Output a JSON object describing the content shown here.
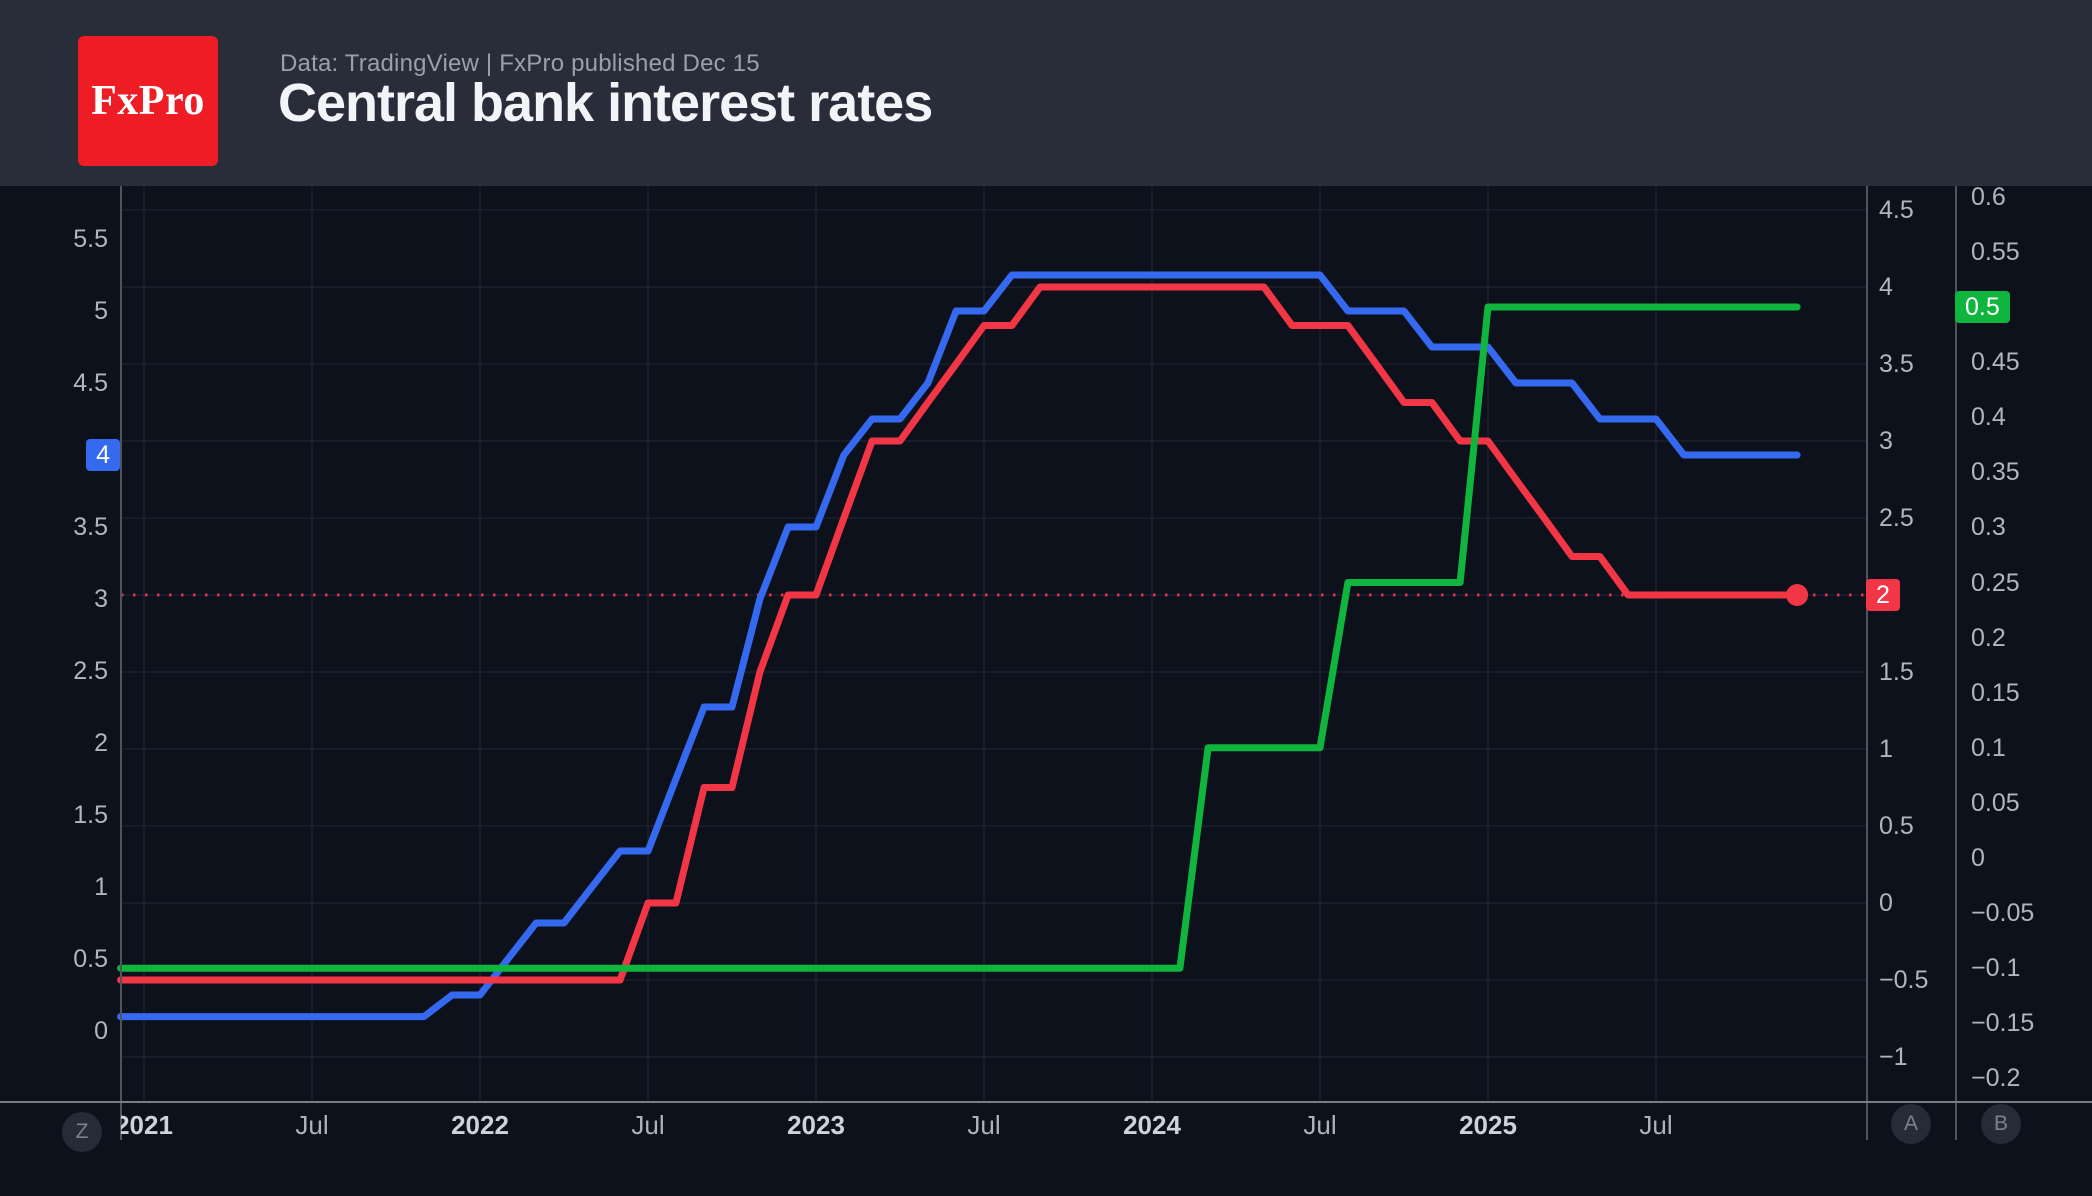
{
  "header": {
    "logo_text": "FxPro",
    "source_line": "Data: TradingView  |  FxPro published Dec 15",
    "title": "Central bank interest rates"
  },
  "chart_data": {
    "type": "line",
    "x_unit": "decimal_year",
    "x_range": [
      2020.93,
      2025.92
    ],
    "grid": true,
    "legend": "none",
    "series": [
      {
        "id": "blue-line",
        "color": "#3569f0",
        "axis": "left",
        "last_value": 4.0,
        "points": [
          [
            2020.93,
            0.1
          ],
          [
            2021.833,
            0.1
          ],
          [
            2021.917,
            0.25
          ],
          [
            2022.0,
            0.25
          ],
          [
            2022.083,
            0.5
          ],
          [
            2022.167,
            0.75
          ],
          [
            2022.25,
            0.75
          ],
          [
            2022.333,
            1.0
          ],
          [
            2022.417,
            1.25
          ],
          [
            2022.5,
            1.25
          ],
          [
            2022.583,
            1.75
          ],
          [
            2022.667,
            2.25
          ],
          [
            2022.75,
            2.25
          ],
          [
            2022.833,
            3.0
          ],
          [
            2022.917,
            3.5
          ],
          [
            2023.0,
            3.5
          ],
          [
            2023.083,
            4.0
          ],
          [
            2023.167,
            4.25
          ],
          [
            2023.25,
            4.25
          ],
          [
            2023.333,
            4.5
          ],
          [
            2023.417,
            5.0
          ],
          [
            2023.5,
            5.0
          ],
          [
            2023.583,
            5.25
          ],
          [
            2024.5,
            5.25
          ],
          [
            2024.583,
            5.0
          ],
          [
            2024.75,
            5.0
          ],
          [
            2024.833,
            4.75
          ],
          [
            2025.0,
            4.75
          ],
          [
            2025.083,
            4.5
          ],
          [
            2025.25,
            4.5
          ],
          [
            2025.333,
            4.25
          ],
          [
            2025.5,
            4.25
          ],
          [
            2025.583,
            4.0
          ],
          [
            2025.92,
            4.0
          ]
        ]
      },
      {
        "id": "red-line",
        "color": "#f23645",
        "axis": "right",
        "last_value": 2.0,
        "points": [
          [
            2020.93,
            -0.5
          ],
          [
            2022.417,
            -0.5
          ],
          [
            2022.5,
            0.0
          ],
          [
            2022.583,
            0.0
          ],
          [
            2022.667,
            0.75
          ],
          [
            2022.75,
            0.75
          ],
          [
            2022.833,
            1.5
          ],
          [
            2022.917,
            2.0
          ],
          [
            2023.0,
            2.0
          ],
          [
            2023.083,
            2.5
          ],
          [
            2023.167,
            3.0
          ],
          [
            2023.25,
            3.0
          ],
          [
            2023.333,
            3.25
          ],
          [
            2023.417,
            3.5
          ],
          [
            2023.5,
            3.75
          ],
          [
            2023.583,
            3.75
          ],
          [
            2023.667,
            4.0
          ],
          [
            2024.333,
            4.0
          ],
          [
            2024.417,
            3.75
          ],
          [
            2024.583,
            3.75
          ],
          [
            2024.667,
            3.5
          ],
          [
            2024.75,
            3.25
          ],
          [
            2024.833,
            3.25
          ],
          [
            2024.917,
            3.0
          ],
          [
            2025.0,
            3.0
          ],
          [
            2025.083,
            2.75
          ],
          [
            2025.167,
            2.5
          ],
          [
            2025.25,
            2.25
          ],
          [
            2025.333,
            2.25
          ],
          [
            2025.417,
            2.0
          ],
          [
            2025.92,
            2.0
          ]
        ]
      },
      {
        "id": "green-line",
        "color": "#0fb53c",
        "axis": "far_right",
        "last_value": 0.5,
        "points": [
          [
            2020.93,
            -0.1
          ],
          [
            2024.083,
            -0.1
          ],
          [
            2024.167,
            0.1
          ],
          [
            2024.5,
            0.1
          ],
          [
            2024.583,
            0.25
          ],
          [
            2024.917,
            0.25
          ],
          [
            2025.0,
            0.5
          ],
          [
            2025.92,
            0.5
          ]
        ]
      }
    ],
    "price_line": {
      "series": "red-line",
      "axis": "right",
      "value": 2.0,
      "style": "dotted",
      "color": "#f23645",
      "end_marker": true
    },
    "axes": {
      "left": {
        "side": "left",
        "ticks": [
          {
            "label": "5.5",
            "v": 5.5
          },
          {
            "label": "5",
            "v": 5.0
          },
          {
            "label": "4.5",
            "v": 4.5
          },
          {
            "label": "3.5",
            "v": 3.5
          },
          {
            "label": "3",
            "v": 3.0
          },
          {
            "label": "2.5",
            "v": 2.5
          },
          {
            "label": "2",
            "v": 2.0
          },
          {
            "label": "1.5",
            "v": 1.5
          },
          {
            "label": "1",
            "v": 1.0
          },
          {
            "label": "0.5",
            "v": 0.5
          },
          {
            "label": "0",
            "v": 0.0
          }
        ],
        "badge": {
          "label": "4",
          "value": 4.0,
          "color": "#3569f0"
        }
      },
      "right": {
        "side": "right",
        "grid_values": [
          4.5,
          4.0,
          3.5,
          3.0,
          2.5,
          2.0,
          1.5,
          1.0,
          0.5,
          0.0,
          -0.5,
          -1.0
        ],
        "ticks": [
          {
            "label": "4.5",
            "v": 4.5
          },
          {
            "label": "4",
            "v": 4.0
          },
          {
            "label": "3.5",
            "v": 3.5
          },
          {
            "label": "3",
            "v": 3.0
          },
          {
            "label": "2.5",
            "v": 2.5
          },
          {
            "label": "1.5",
            "v": 1.5
          },
          {
            "label": "1",
            "v": 1.0
          },
          {
            "label": "0.5",
            "v": 0.5
          },
          {
            "label": "0",
            "v": 0.0
          },
          {
            "label": "−0.5",
            "v": -0.5
          },
          {
            "label": "−1",
            "v": -1.0
          }
        ],
        "badge": {
          "label": "2",
          "value": 2.0,
          "color": "#f23645"
        }
      },
      "far_right": {
        "side": "far_right",
        "ticks": [
          {
            "label": "0.6",
            "v": 0.6
          },
          {
            "label": "0.55",
            "v": 0.55
          },
          {
            "label": "0.45",
            "v": 0.45
          },
          {
            "label": "0.4",
            "v": 0.4
          },
          {
            "label": "0.35",
            "v": 0.35
          },
          {
            "label": "0.3",
            "v": 0.3
          },
          {
            "label": "0.25",
            "v": 0.25
          },
          {
            "label": "0.2",
            "v": 0.2
          },
          {
            "label": "0.15",
            "v": 0.15
          },
          {
            "label": "0.1",
            "v": 0.1
          },
          {
            "label": "0.05",
            "v": 0.05
          },
          {
            "label": "0",
            "v": 0.0
          },
          {
            "label": "−0.05",
            "v": -0.05
          },
          {
            "label": "−0.1",
            "v": -0.1
          },
          {
            "label": "−0.15",
            "v": -0.15
          },
          {
            "label": "−0.2",
            "v": -0.2
          }
        ],
        "badge": {
          "label": "0.5",
          "value": 0.5,
          "color": "#0fb53c"
        }
      }
    },
    "time_axis": {
      "ticks": [
        {
          "label": "2021",
          "t": 2021.0,
          "major": true
        },
        {
          "label": "Jul",
          "t": 2021.5,
          "major": false
        },
        {
          "label": "2022",
          "t": 2022.0,
          "major": true
        },
        {
          "label": "Jul",
          "t": 2022.5,
          "major": false
        },
        {
          "label": "2023",
          "t": 2023.0,
          "major": true
        },
        {
          "label": "Jul",
          "t": 2023.5,
          "major": false
        },
        {
          "label": "2024",
          "t": 2024.0,
          "major": true
        },
        {
          "label": "Jul",
          "t": 2024.5,
          "major": false
        },
        {
          "label": "2025",
          "t": 2025.0,
          "major": true
        },
        {
          "label": "Jul",
          "t": 2025.5,
          "major": false
        }
      ]
    }
  },
  "axis_buttons": [
    {
      "label": "Z"
    },
    {
      "label": "A"
    },
    {
      "label": "B"
    }
  ]
}
